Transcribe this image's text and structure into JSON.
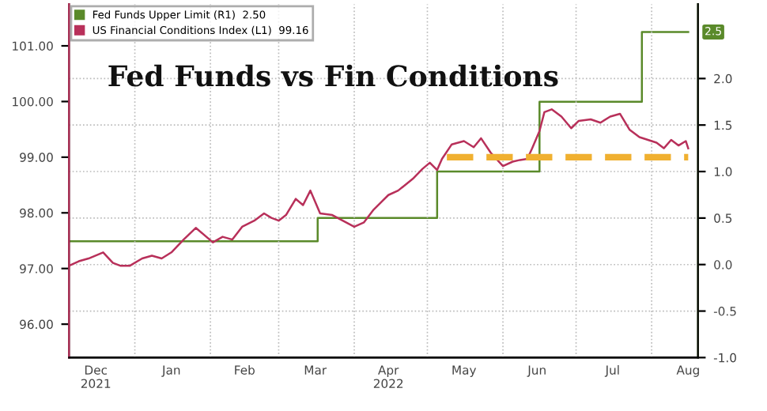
{
  "chart_data": {
    "type": "line",
    "title": "Fed Funds vs Fin Conditions",
    "xlim": [
      "2021-12-05",
      "2022-08-20"
    ],
    "xticks": [
      {
        "value": "2022-01-01",
        "label": null
      },
      {
        "value": "2022-02-01",
        "label": null
      },
      {
        "value": "2022-03-01",
        "label": null
      },
      {
        "value": "2022-04-01",
        "label": null
      },
      {
        "value": "2022-05-01",
        "label": null
      },
      {
        "value": "2022-06-01",
        "label": null
      },
      {
        "value": "2022-07-01",
        "label": null
      },
      {
        "value": "2022-08-01",
        "label": null
      },
      {
        "value": "2021-12-16",
        "label": "Dec\n2021"
      },
      {
        "value": "2022-01-16",
        "label": "Jan"
      },
      {
        "value": "2022-02-15",
        "label": "Feb"
      },
      {
        "value": "2022-03-16",
        "label": "Mar"
      },
      {
        "value": "2022-04-15",
        "label": "Apr\n2022"
      },
      {
        "value": "2022-05-16",
        "label": "May"
      },
      {
        "value": "2022-06-15",
        "label": "Jun"
      },
      {
        "value": "2022-07-16",
        "label": "Jul"
      },
      {
        "value": "2022-08-16",
        "label": "Aug"
      }
    ],
    "ylim": [
      95.4,
      101.75
    ],
    "yticks": [
      {
        "value": 96,
        "label": "96.00"
      },
      {
        "value": 97,
        "label": "97.00"
      },
      {
        "value": 98,
        "label": "98.00"
      },
      {
        "value": 99,
        "label": "99.00"
      },
      {
        "value": 100,
        "label": "100.00"
      },
      {
        "value": 101,
        "label": "101.00"
      }
    ],
    "y2lim": [
      -1.0,
      2.8
    ],
    "y2ticks": [
      {
        "value": -1.0,
        "label": "-1.0"
      },
      {
        "value": -0.5,
        "label": "-0.5"
      },
      {
        "value": 0.0,
        "label": "0.0"
      },
      {
        "value": 0.5,
        "label": "0.5"
      },
      {
        "value": 1.0,
        "label": "1.0"
      },
      {
        "value": 1.5,
        "label": "1.5"
      },
      {
        "value": 2.0,
        "label": "2.0"
      }
    ],
    "grid": true,
    "legend": "top left",
    "series": [
      {
        "name": "Fed Funds Upper Limit (R1)  2.50",
        "type": "step",
        "axis": "y2",
        "color": "#5a8a2a",
        "x": [
          "2021-12-05",
          "2022-03-17",
          "2022-05-05",
          "2022-06-16",
          "2022-07-28",
          "2022-08-16"
        ],
        "values": [
          0.25,
          0.5,
          1.0,
          1.75,
          2.5,
          2.5
        ],
        "value_labels": [
          null,
          null,
          null,
          null,
          null,
          "2.5"
        ]
      },
      {
        "name": "US Financial Conditions Index (L1)  99.16",
        "color": "#b8305a",
        "x": [
          "2021-12-05",
          "2021-12-09",
          "2021-12-13",
          "2021-12-19",
          "2021-12-23",
          "2021-12-26",
          "2021-12-30",
          "2022-01-04",
          "2022-01-08",
          "2022-01-12",
          "2022-01-16",
          "2022-01-21",
          "2022-01-26",
          "2022-02-02",
          "2022-02-06",
          "2022-02-10",
          "2022-02-14",
          "2022-02-19",
          "2022-02-23",
          "2022-02-26",
          "2022-03-01",
          "2022-03-04",
          "2022-03-08",
          "2022-03-11",
          "2022-03-14",
          "2022-03-18",
          "2022-03-23",
          "2022-04-01",
          "2022-04-05",
          "2022-04-09",
          "2022-04-15",
          "2022-04-19",
          "2022-04-25",
          "2022-04-29",
          "2022-05-02",
          "2022-05-05",
          "2022-05-07",
          "2022-05-11",
          "2022-05-16",
          "2022-05-20",
          "2022-05-23",
          "2022-05-27",
          "2022-06-01",
          "2022-06-05",
          "2022-06-08",
          "2022-06-11",
          "2022-06-13",
          "2022-06-16",
          "2022-06-18",
          "2022-06-21",
          "2022-06-25",
          "2022-06-29",
          "2022-07-02",
          "2022-07-07",
          "2022-07-11",
          "2022-07-15",
          "2022-07-19",
          "2022-07-23",
          "2022-07-27",
          "2022-08-03",
          "2022-08-06",
          "2022-08-09",
          "2022-08-12",
          "2022-08-15",
          "2022-08-16"
        ],
        "values": [
          97.05,
          97.13,
          97.18,
          97.29,
          97.1,
          97.05,
          97.05,
          97.18,
          97.23,
          97.18,
          97.29,
          97.52,
          97.73,
          97.47,
          97.57,
          97.52,
          97.75,
          97.86,
          97.99,
          97.91,
          97.86,
          97.96,
          98.25,
          98.14,
          98.4,
          97.99,
          97.96,
          97.75,
          97.83,
          98.06,
          98.32,
          98.4,
          98.61,
          98.79,
          98.9,
          98.77,
          98.97,
          99.23,
          99.29,
          99.18,
          99.34,
          99.08,
          98.84,
          98.92,
          98.95,
          98.97,
          99.16,
          99.47,
          99.81,
          99.86,
          99.73,
          99.52,
          99.65,
          99.68,
          99.62,
          99.73,
          99.78,
          99.49,
          99.36,
          99.26,
          99.16,
          99.31,
          99.21,
          99.29,
          99.16
        ]
      },
      {
        "color": "#f0b030",
        "line_style": "dashed",
        "x": [
          "2022-05-09",
          "2022-08-16"
        ],
        "values": [
          99.0,
          99.0
        ]
      }
    ]
  }
}
